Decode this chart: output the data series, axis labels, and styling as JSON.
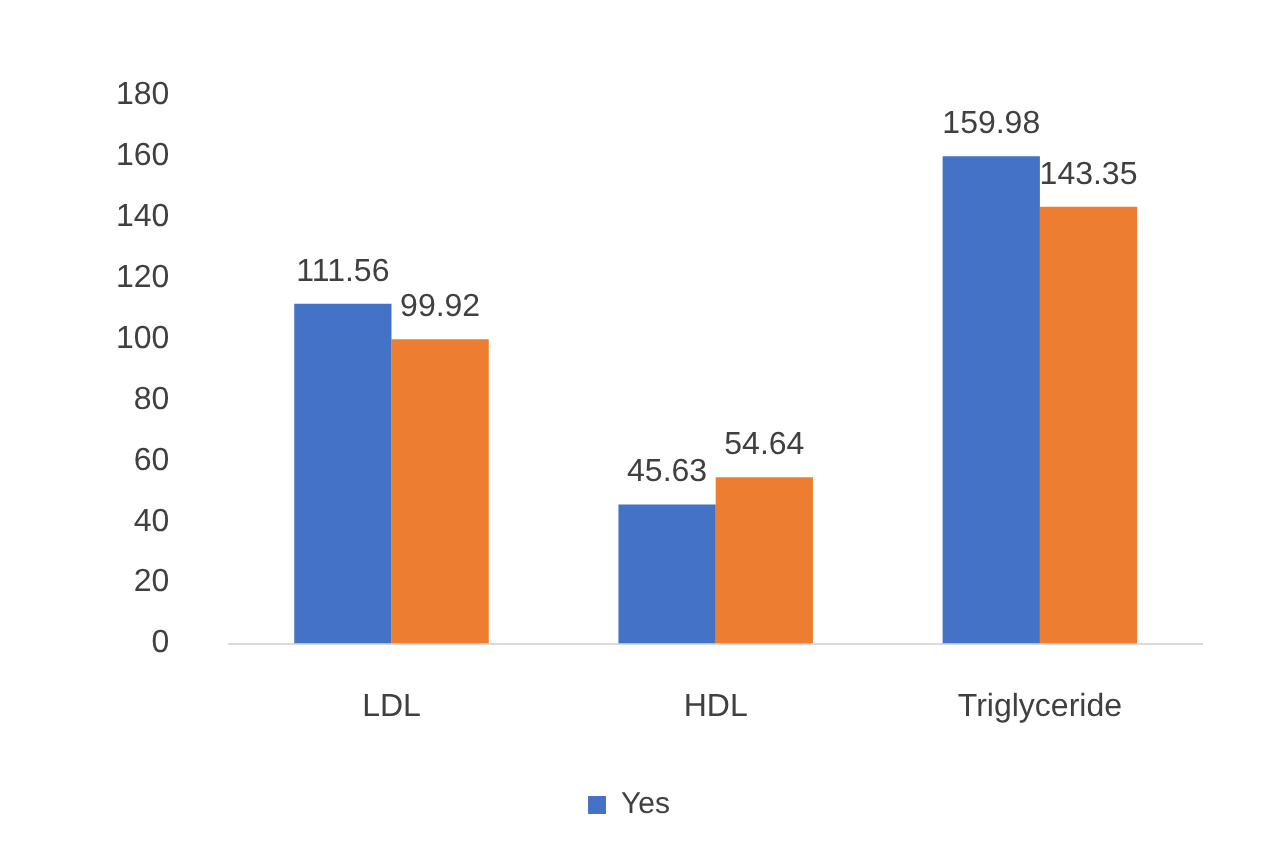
{
  "chart_data": {
    "type": "bar",
    "categories": [
      "LDL",
      "HDL",
      "Triglyceride"
    ],
    "series": [
      {
        "name": "Yes",
        "color": "#4472c4",
        "values": [
          111.56,
          45.63,
          159.98
        ]
      },
      {
        "color": "#ed7d31",
        "values": [
          99.92,
          54.64,
          143.35
        ]
      }
    ],
    "ylim": [
      0,
      180
    ],
    "yticks": [
      0,
      20,
      40,
      60,
      80,
      100,
      120,
      140,
      160,
      180
    ],
    "grid": false,
    "legend": "bottom",
    "data_labels": true
  }
}
